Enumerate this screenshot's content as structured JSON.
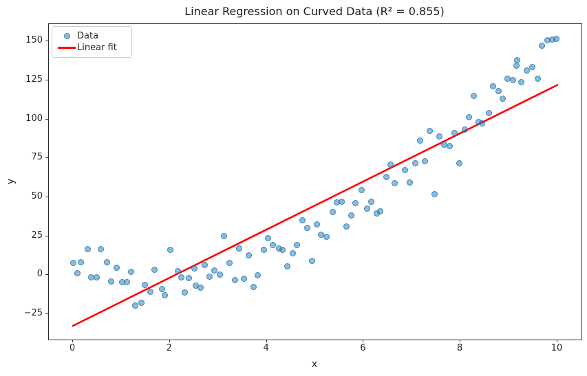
{
  "title": "Linear Regression on Curved Data (R² = 0.855)",
  "axes": {
    "xlabel": "x",
    "ylabel": "y",
    "x_tick_labels": [
      "0",
      "2",
      "4",
      "6",
      "8",
      "10"
    ],
    "y_tick_labels": [
      "−25",
      "0",
      "25",
      "50",
      "75",
      "100",
      "125",
      "150"
    ]
  },
  "legend": {
    "items": [
      {
        "label": "Data",
        "marker": "scatter-dot"
      },
      {
        "label": "Linear fit",
        "marker": "red-line"
      }
    ]
  },
  "colors": {
    "scatter_blue": "#1f77b4",
    "fit_line_red": "#ff0000",
    "text": "#262626"
  },
  "chart_data": {
    "type": "scatter",
    "title": "Linear Regression on Curved Data (R² = 0.855)",
    "xlabel": "x",
    "ylabel": "y",
    "xlim": [
      -0.5,
      10.5
    ],
    "ylim": [
      -41.3,
      161.1
    ],
    "x_ticks": [
      0,
      2,
      4,
      6,
      8,
      10
    ],
    "y_ticks": [
      -25,
      0,
      25,
      50,
      75,
      100,
      125,
      150
    ],
    "grid": false,
    "legend_position": "upper left",
    "r_squared": 0.855,
    "series": [
      {
        "name": "Data",
        "type": "scatter",
        "color": "#1f77b4",
        "alpha": 0.5,
        "points": [
          [
            0.0,
            7.8
          ],
          [
            0.09,
            1.2
          ],
          [
            0.17,
            8.4
          ],
          [
            0.3,
            16.6
          ],
          [
            0.38,
            -1.5
          ],
          [
            0.49,
            -1.5
          ],
          [
            0.58,
            16.6
          ],
          [
            0.7,
            8.5
          ],
          [
            0.79,
            -4.0
          ],
          [
            0.9,
            4.9
          ],
          [
            1.01,
            -4.7
          ],
          [
            1.12,
            -4.4
          ],
          [
            1.2,
            2.3
          ],
          [
            1.29,
            -19.4
          ],
          [
            1.41,
            -17.6
          ],
          [
            1.48,
            -6.2
          ],
          [
            1.6,
            -10.6
          ],
          [
            1.69,
            3.4
          ],
          [
            1.84,
            -8.8
          ],
          [
            1.9,
            -12.8
          ],
          [
            2.01,
            16.1
          ],
          [
            2.17,
            2.6
          ],
          [
            2.24,
            -1.5
          ],
          [
            2.31,
            -11.3
          ],
          [
            2.39,
            -1.8
          ],
          [
            2.51,
            4.4
          ],
          [
            2.53,
            -6.9
          ],
          [
            2.63,
            -7.9
          ],
          [
            2.72,
            6.7
          ],
          [
            2.82,
            -1.1
          ],
          [
            2.92,
            2.9
          ],
          [
            3.03,
            0.4
          ],
          [
            3.12,
            25.1
          ],
          [
            3.23,
            7.8
          ],
          [
            3.35,
            -3.0
          ],
          [
            3.43,
            17.0
          ],
          [
            3.53,
            -2.2
          ],
          [
            3.63,
            12.9
          ],
          [
            3.73,
            -7.7
          ],
          [
            3.81,
            -0.3
          ],
          [
            3.94,
            16.1
          ],
          [
            4.02,
            23.9
          ],
          [
            4.13,
            19.1
          ],
          [
            4.25,
            17.0
          ],
          [
            4.33,
            16.1
          ],
          [
            4.43,
            5.6
          ],
          [
            4.54,
            14.1
          ],
          [
            4.63,
            19.1
          ],
          [
            4.74,
            35.0
          ],
          [
            4.84,
            30.3
          ],
          [
            4.93,
            9.3
          ],
          [
            5.04,
            32.5
          ],
          [
            5.12,
            26.1
          ],
          [
            5.24,
            24.7
          ],
          [
            5.36,
            40.4
          ],
          [
            5.45,
            46.7
          ],
          [
            5.54,
            47.0
          ],
          [
            5.64,
            31.0
          ],
          [
            5.75,
            38.4
          ],
          [
            5.83,
            46.0
          ],
          [
            5.96,
            54.8
          ],
          [
            6.07,
            42.8
          ],
          [
            6.16,
            47.0
          ],
          [
            6.27,
            39.8
          ],
          [
            6.34,
            40.8
          ],
          [
            6.47,
            62.9
          ],
          [
            6.56,
            71.0
          ],
          [
            6.64,
            58.8
          ],
          [
            6.85,
            67.3
          ],
          [
            6.96,
            59.6
          ],
          [
            7.07,
            71.7
          ],
          [
            7.17,
            86.4
          ],
          [
            7.26,
            72.9
          ],
          [
            7.37,
            92.5
          ],
          [
            7.46,
            51.9
          ],
          [
            7.56,
            88.9
          ],
          [
            7.66,
            83.9
          ],
          [
            7.77,
            83.0
          ],
          [
            7.87,
            91.3
          ],
          [
            7.97,
            71.6
          ],
          [
            8.09,
            93.5
          ],
          [
            8.18,
            101.2
          ],
          [
            8.27,
            114.8
          ],
          [
            8.37,
            98.3
          ],
          [
            8.45,
            97.3
          ],
          [
            8.59,
            103.9
          ],
          [
            8.67,
            121.1
          ],
          [
            8.78,
            118.2
          ],
          [
            8.87,
            113.3
          ],
          [
            8.97,
            126.2
          ],
          [
            9.08,
            125.0
          ],
          [
            9.16,
            134.3
          ],
          [
            9.17,
            138.0
          ],
          [
            9.26,
            123.6
          ],
          [
            9.37,
            131.1
          ],
          [
            9.48,
            133.6
          ],
          [
            9.59,
            126.2
          ],
          [
            9.68,
            147.3
          ],
          [
            9.79,
            150.9
          ],
          [
            9.9,
            151.3
          ],
          [
            9.98,
            151.5
          ]
        ]
      },
      {
        "name": "Linear fit",
        "type": "line",
        "color": "#ff0000",
        "slope": 15.45,
        "intercept": -32.5,
        "points": [
          [
            0,
            -32.5
          ],
          [
            10,
            122.0
          ]
        ]
      }
    ]
  }
}
